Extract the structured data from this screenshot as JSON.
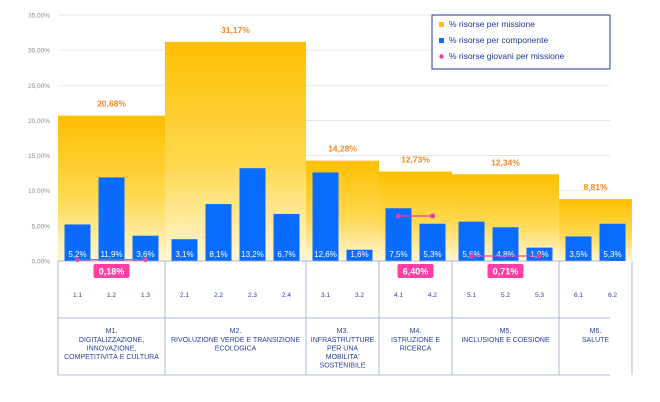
{
  "chart_data": {
    "type": "bar",
    "y_ticks": [
      "0,00%",
      "5,00%",
      "10,00%",
      "15,00%",
      "20,00%",
      "25,00%",
      "30,00%",
      "35,00%"
    ],
    "ylim": [
      0,
      35
    ],
    "legend": [
      {
        "label": "% risorse per missione",
        "color": "#ffc000",
        "marker": "square"
      },
      {
        "label": "% risorse per componente",
        "color": "#0a6cff",
        "marker": "square"
      },
      {
        "label": "%  risorse giovani per missione",
        "color": "#e040a0",
        "marker": "dot"
      }
    ],
    "missions": [
      {
        "code": "M1.",
        "name_lines": [
          "DIGITALIZZAZIONE,",
          "INNOVAZIONE,",
          "COMPETITIVITÀ E CULTURA"
        ],
        "value": 20.68,
        "label": "20,68%",
        "components": [
          {
            "code": "1.1",
            "value": 5.2,
            "label": "5,2%"
          },
          {
            "code": "1.2",
            "value": 11.9,
            "label": "11,9%"
          },
          {
            "code": "1.3",
            "value": 3.6,
            "label": "3,6%"
          }
        ],
        "youth": {
          "value": 0.18,
          "label": "0,18%"
        }
      },
      {
        "code": "M2.",
        "name_lines": [
          "RIVOLUZIONE VERDE E TRANSIZIONE",
          "ECOLOGICA"
        ],
        "value": 31.17,
        "label": "31,17%",
        "components": [
          {
            "code": "2.1",
            "value": 3.1,
            "label": "3,1%"
          },
          {
            "code": "2.2",
            "value": 8.1,
            "label": "8,1%"
          },
          {
            "code": "2.3",
            "value": 13.2,
            "label": "13,2%"
          },
          {
            "code": "2.4",
            "value": 6.7,
            "label": "6,7%"
          }
        ]
      },
      {
        "code": "M3.",
        "name_lines": [
          "INFRASTRUTTURE",
          "PER UNA",
          "MOBILITA'",
          "SOSTENIBILE"
        ],
        "value": 14.28,
        "label": "14,28%",
        "components": [
          {
            "code": "3.1",
            "value": 12.6,
            "label": "12,6%"
          },
          {
            "code": "3.2",
            "value": 1.6,
            "label": "1,6%"
          }
        ]
      },
      {
        "code": "M4.",
        "name_lines": [
          "ISTRUZIONE E",
          "RICERCA"
        ],
        "value": 12.73,
        "label": "12,73%",
        "components": [
          {
            "code": "4.1",
            "value": 7.5,
            "label": "7,5%"
          },
          {
            "code": "4.2",
            "value": 5.3,
            "label": "5,3%"
          }
        ],
        "youth": {
          "value": 6.4,
          "label": "6,40%"
        }
      },
      {
        "code": "M5.",
        "name_lines": [
          "INCLUSIONE E COESIONE"
        ],
        "value": 12.34,
        "label": "12,34%",
        "components": [
          {
            "code": "5.1",
            "value": 5.6,
            "label": "5,6%"
          },
          {
            "code": "5.2",
            "value": 4.8,
            "label": "4,8%"
          },
          {
            "code": "5.3",
            "value": 1.9,
            "label": "1,9%"
          }
        ],
        "youth": {
          "value": 0.71,
          "label": "0,71%"
        }
      },
      {
        "code": "M6.",
        "name_lines": [
          "SALUTE"
        ],
        "value": 8.81,
        "label": "8,81%",
        "components": [
          {
            "code": "6.1",
            "value": 3.5,
            "label": "3,5%"
          },
          {
            "code": "6.2",
            "value": 5.3,
            "label": "5,3%"
          }
        ]
      }
    ]
  }
}
